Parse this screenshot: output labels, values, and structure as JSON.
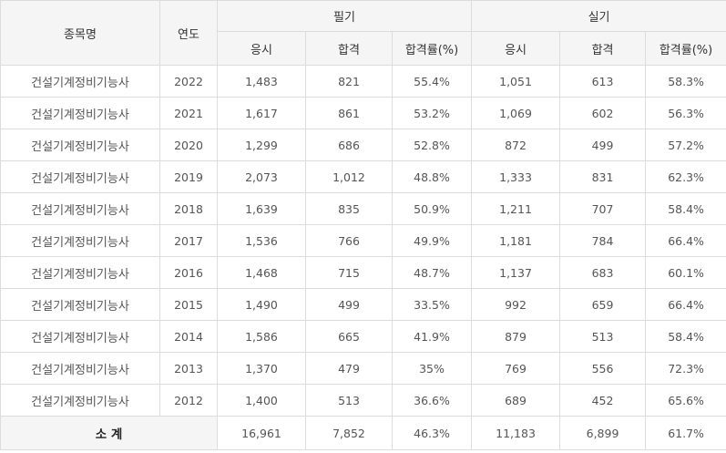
{
  "header": {
    "item_name": "종목명",
    "year": "연도",
    "written": "필기",
    "practical": "실기",
    "applicants": "응시",
    "passed": "합격",
    "pass_rate": "합격률(%)"
  },
  "rows": [
    {
      "name": "건설기계정비기능사",
      "year": "2022",
      "w_app": "1,483",
      "w_pass": "821",
      "w_rate": "55.4%",
      "p_app": "1,051",
      "p_pass": "613",
      "p_rate": "58.3%"
    },
    {
      "name": "건설기계정비기능사",
      "year": "2021",
      "w_app": "1,617",
      "w_pass": "861",
      "w_rate": "53.2%",
      "p_app": "1,069",
      "p_pass": "602",
      "p_rate": "56.3%"
    },
    {
      "name": "건설기계정비기능사",
      "year": "2020",
      "w_app": "1,299",
      "w_pass": "686",
      "w_rate": "52.8%",
      "p_app": "872",
      "p_pass": "499",
      "p_rate": "57.2%"
    },
    {
      "name": "건설기계정비기능사",
      "year": "2019",
      "w_app": "2,073",
      "w_pass": "1,012",
      "w_rate": "48.8%",
      "p_app": "1,333",
      "p_pass": "831",
      "p_rate": "62.3%"
    },
    {
      "name": "건설기계정비기능사",
      "year": "2018",
      "w_app": "1,639",
      "w_pass": "835",
      "w_rate": "50.9%",
      "p_app": "1,211",
      "p_pass": "707",
      "p_rate": "58.4%"
    },
    {
      "name": "건설기계정비기능사",
      "year": "2017",
      "w_app": "1,536",
      "w_pass": "766",
      "w_rate": "49.9%",
      "p_app": "1,181",
      "p_pass": "784",
      "p_rate": "66.4%"
    },
    {
      "name": "건설기계정비기능사",
      "year": "2016",
      "w_app": "1,468",
      "w_pass": "715",
      "w_rate": "48.7%",
      "p_app": "1,137",
      "p_pass": "683",
      "p_rate": "60.1%"
    },
    {
      "name": "건설기계정비기능사",
      "year": "2015",
      "w_app": "1,490",
      "w_pass": "499",
      "w_rate": "33.5%",
      "p_app": "992",
      "p_pass": "659",
      "p_rate": "66.4%"
    },
    {
      "name": "건설기계정비기능사",
      "year": "2014",
      "w_app": "1,586",
      "w_pass": "665",
      "w_rate": "41.9%",
      "p_app": "879",
      "p_pass": "513",
      "p_rate": "58.4%"
    },
    {
      "name": "건설기계정비기능사",
      "year": "2013",
      "w_app": "1,370",
      "w_pass": "479",
      "w_rate": "35%",
      "p_app": "769",
      "p_pass": "556",
      "p_rate": "72.3%"
    },
    {
      "name": "건설기계정비기능사",
      "year": "2012",
      "w_app": "1,400",
      "w_pass": "513",
      "w_rate": "36.6%",
      "p_app": "689",
      "p_pass": "452",
      "p_rate": "65.6%"
    }
  ],
  "total": {
    "label": "소 계",
    "w_app": "16,961",
    "w_pass": "7,852",
    "w_rate": "46.3%",
    "p_app": "11,183",
    "p_pass": "6,899",
    "p_rate": "61.7%"
  }
}
